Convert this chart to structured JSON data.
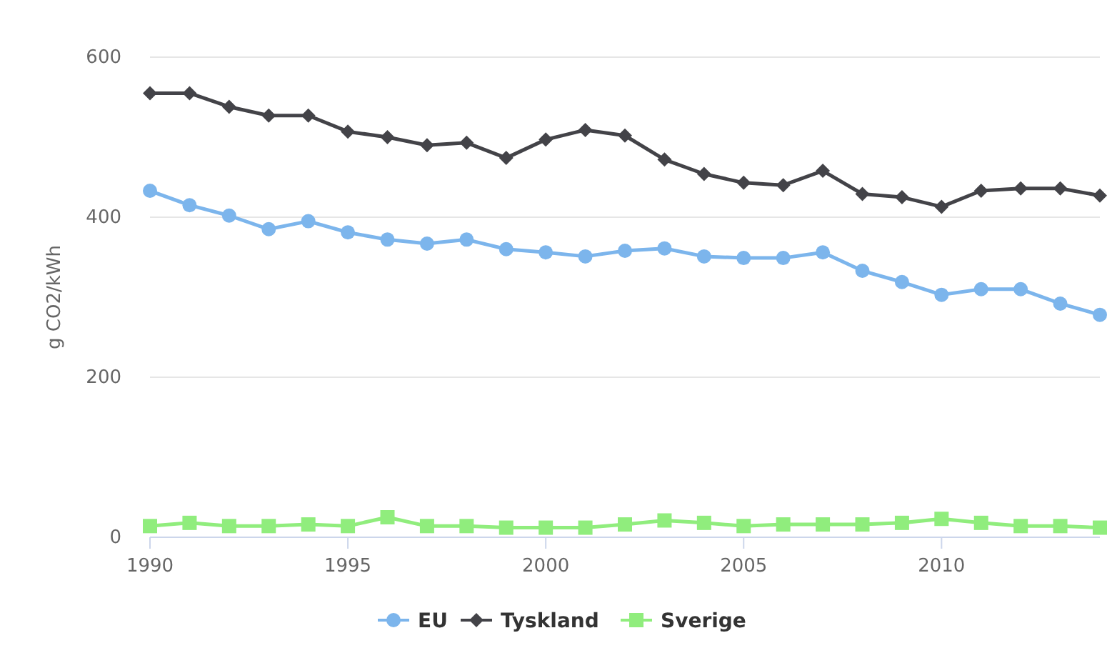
{
  "chart_data": {
    "type": "line",
    "ylabel": "g CO2/kWh",
    "x": [
      1990,
      1991,
      1992,
      1993,
      1994,
      1995,
      1996,
      1997,
      1998,
      1999,
      2000,
      2001,
      2002,
      2003,
      2004,
      2005,
      2006,
      2007,
      2008,
      2009,
      2010,
      2011,
      2012,
      2013,
      2014
    ],
    "xlim": [
      1990,
      2014
    ],
    "xticks": [
      1990,
      1995,
      2000,
      2005,
      2010
    ],
    "ylim": [
      0,
      600
    ],
    "yticks": [
      0,
      200,
      400,
      600
    ],
    "grid": "y",
    "legend": "bottom",
    "series": [
      {
        "name": "EU",
        "color": "#7cb5ec",
        "marker": "circle",
        "values": [
          433,
          415,
          402,
          385,
          395,
          381,
          372,
          367,
          372,
          360,
          356,
          351,
          358,
          361,
          351,
          349,
          349,
          356,
          333,
          319,
          303,
          310,
          310,
          292,
          278
        ]
      },
      {
        "name": "Tyskland",
        "color": "#434348",
        "marker": "diamond",
        "values": [
          555,
          555,
          538,
          527,
          527,
          507,
          500,
          490,
          493,
          474,
          497,
          509,
          502,
          472,
          454,
          443,
          440,
          458,
          429,
          425,
          413,
          433,
          436,
          436,
          427
        ]
      },
      {
        "name": "Sverige",
        "color": "#90ed7d",
        "marker": "square",
        "values": [
          14,
          18,
          14,
          14,
          16,
          14,
          25,
          14,
          14,
          12,
          12,
          12,
          16,
          21,
          18,
          14,
          16,
          16,
          16,
          18,
          23,
          18,
          14,
          14,
          12
        ]
      }
    ]
  }
}
